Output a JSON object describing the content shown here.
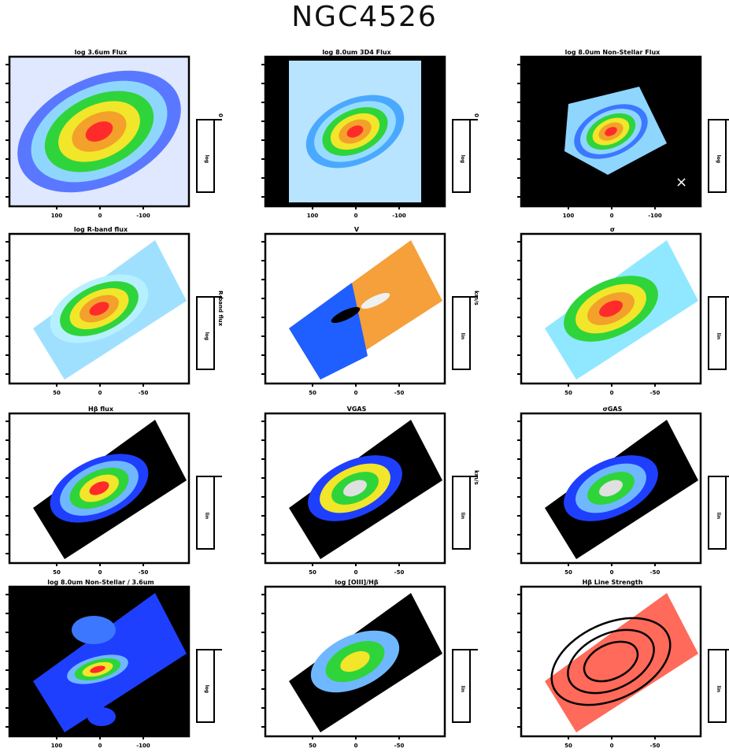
{
  "figure": {
    "title": "NGC4526"
  },
  "panels": [
    {
      "id": "p1",
      "title": "log 3.6um Flux",
      "background": "#dfe8ff",
      "map": "ellipse",
      "colors": [
        "#5a78ff",
        "#8fd6ff",
        "#2fd43a",
        "#f2e62a",
        "#f3a12a",
        "#ff2b2b"
      ],
      "xticks": [
        "100",
        "0",
        "-100"
      ],
      "cbar": "log",
      "cbar_top": "0"
    },
    {
      "id": "p2",
      "title": "log 8.0um 3D4 Flux",
      "background": "#000000",
      "map": "ellipse-bw",
      "colors": [
        "#4aa9ff",
        "#97dcff",
        "#2fd43a",
        "#f2e62a",
        "#f3a12a",
        "#ff2b2b"
      ],
      "xticks": [
        "100",
        "0",
        "-100"
      ],
      "cbar": "log",
      "cbar_top": "0"
    },
    {
      "id": "p3",
      "title": "log 8.0um Non-Stellar Flux",
      "background": "#000000",
      "map": "ellipse-small",
      "colors": [
        "#3c78ff",
        "#8fd6ff",
        "#2fd43a",
        "#f2e62a",
        "#f3a12a",
        "#ff2b2b"
      ],
      "xticks": [
        "100",
        "0",
        "-100"
      ],
      "cbar": "log",
      "cbar_top": "0"
    },
    {
      "id": "p4",
      "title": "log R-band flux",
      "background": "#ffffff",
      "map": "tilted",
      "colors": [
        "#8fd6ff",
        "#b6f0ff",
        "#2fd43a",
        "#f2e62a",
        "#f3a12a",
        "#ff2b2b"
      ],
      "xticks": [
        "50",
        "0",
        "-50"
      ],
      "cbar": "log",
      "cbar_top": "R-band flux"
    },
    {
      "id": "p5",
      "title": "V",
      "background": "#ffffff",
      "map": "velocity",
      "colors": [
        "#1f3fff",
        "#6fb8ff",
        "#ffe04a",
        "#ff8a2a",
        "#ff2b2b"
      ],
      "xticks": [
        "50",
        "0",
        "-50"
      ],
      "cbar": "lin",
      "cbar_top": "km/s"
    },
    {
      "id": "p6",
      "title": "σ",
      "background": "#ffffff",
      "map": "dispersion",
      "colors": [
        "#8fe8ff",
        "#2fd43a",
        "#f2e62a",
        "#f3a12a",
        "#ff2b2b"
      ],
      "xticks": [
        "50",
        "0",
        "-50"
      ],
      "cbar": "lin",
      "cbar_top": "km/s"
    },
    {
      "id": "p7",
      "title": "Hβ flux",
      "background": "#ffffff",
      "map": "hb",
      "colors": [
        "#000000",
        "#1f3fff",
        "#6fb8ff",
        "#2fd43a",
        "#f2e62a",
        "#ff2b2b"
      ],
      "xticks": [
        "50",
        "0",
        "-50"
      ],
      "cbar": "lin",
      "cbar_top": ""
    },
    {
      "id": "p8",
      "title": "VGAS",
      "background": "#ffffff",
      "map": "vgas",
      "colors": [
        "#000000",
        "#1f3fff",
        "#f2e62a",
        "#2fd43a",
        "#e0e0e0"
      ],
      "xticks": [
        "50",
        "0",
        "-50"
      ],
      "cbar": "lin",
      "cbar_top": "km/s"
    },
    {
      "id": "p9",
      "title": "σGAS",
      "background": "#ffffff",
      "map": "sgas",
      "colors": [
        "#000000",
        "#1f3fff",
        "#6fb8ff",
        "#2fd43a",
        "#e0e0e0"
      ],
      "xticks": [
        "50",
        "0",
        "-50"
      ],
      "cbar": "lin",
      "cbar_top": "km/s"
    },
    {
      "id": "p10",
      "title": "log 8.0um Non-Stellar / 3.6um",
      "background": "#000000",
      "map": "ratio",
      "colors": [
        "#1f3fff",
        "#6fb8ff",
        "#2fd43a",
        "#f2e62a",
        "#ff2b2b"
      ],
      "xticks": [
        "100",
        "0",
        "-100"
      ],
      "cbar": "log",
      "cbar_top": ""
    },
    {
      "id": "p11",
      "title": "log [OIII]/Hβ",
      "background": "#ffffff",
      "map": "oiii",
      "colors": [
        "#000000",
        "#6fb8ff",
        "#2fd43a",
        "#f2e62a"
      ],
      "xticks": [
        "50",
        "0",
        "-50"
      ],
      "cbar": "lin",
      "cbar_top": ""
    },
    {
      "id": "p12",
      "title": "Hβ Line Strength",
      "background": "#ffffff",
      "map": "lsi",
      "colors": [
        "#ffffff",
        "#ffb0b0",
        "#ff5a4a",
        "#ff1f1f",
        "#000000"
      ],
      "xticks": [
        "50",
        "0",
        "-50"
      ],
      "cbar": "lin",
      "cbar_top": ""
    }
  ]
}
